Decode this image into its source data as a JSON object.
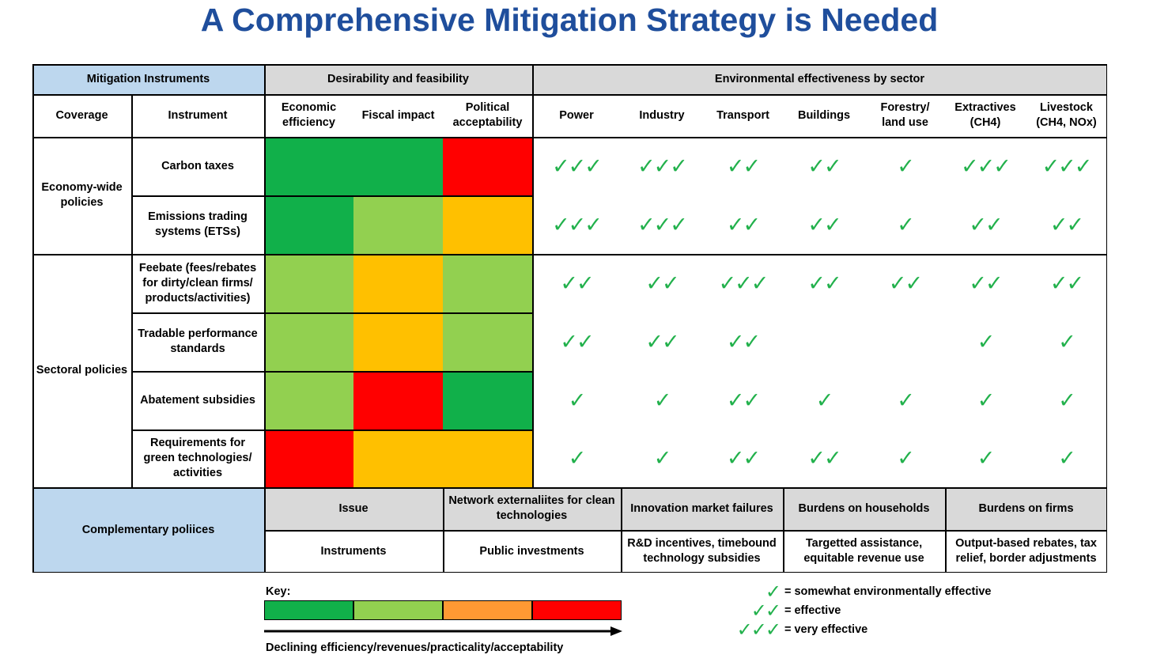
{
  "title": "A Comprehensive Mitigation Strategy is Needed",
  "colors": {
    "dark_green": "#11b04a",
    "light_green": "#92d050",
    "amber": "#ffc000",
    "orange": "#ff9933",
    "red": "#ff0000",
    "check": "#22b14c",
    "title": "#1f4e9c",
    "header_blue": "#bdd7ee",
    "header_gray": "#d9d9d9"
  },
  "header": {
    "mitigation_instruments": "Mitigation Instruments",
    "desirability": "Desirability and feasibility",
    "effectiveness": "Environmental effectiveness by sector",
    "coverage": "Coverage",
    "instrument": "Instrument",
    "economic_efficiency": "Economic efficiency",
    "fiscal_impact": "Fiscal impact",
    "political_acceptability": "Political acceptability",
    "sectors": [
      "Power",
      "Industry",
      "Transport",
      "Buildings",
      "Forestry/ land use",
      "Extractives (CH4)",
      "Livestock (CH4, NOx)"
    ]
  },
  "groups": [
    {
      "label": "Economy-wide policies"
    },
    {
      "label": "Sectoral policies"
    }
  ],
  "rows": [
    {
      "instrument": "Carbon taxes",
      "ratings": [
        "dark_green",
        "dark_green",
        "red"
      ],
      "checks": [
        "✓✓✓",
        "✓✓✓",
        "✓✓",
        "✓✓",
        "✓",
        "✓✓✓",
        "✓✓✓"
      ]
    },
    {
      "instrument": "Emissions trading systems (ETSs)",
      "ratings": [
        "dark_green",
        "light_green",
        "amber"
      ],
      "checks": [
        "✓✓✓",
        "✓✓✓",
        "✓✓",
        "✓✓",
        "✓",
        "✓✓",
        "✓✓"
      ]
    },
    {
      "instrument": "Feebate (fees/rebates for dirty/clean firms/ products/activities)",
      "ratings": [
        "light_green",
        "amber",
        "light_green"
      ],
      "checks": [
        "✓✓",
        "✓✓",
        "✓✓✓",
        "✓✓",
        "✓✓",
        "✓✓",
        "✓✓"
      ]
    },
    {
      "instrument": "Tradable performance standards",
      "ratings": [
        "light_green",
        "amber",
        "light_green"
      ],
      "checks": [
        "✓✓",
        "✓✓",
        "✓✓",
        "",
        "",
        "✓",
        "✓"
      ]
    },
    {
      "instrument": "Abatement subsidies",
      "ratings": [
        "light_green",
        "red",
        "dark_green"
      ],
      "checks": [
        "✓",
        "✓",
        "✓✓",
        "✓",
        "✓",
        "✓",
        "✓"
      ]
    },
    {
      "instrument": "Requirements for green technologies/ activities",
      "ratings": [
        "red",
        "amber",
        "amber"
      ],
      "checks": [
        "✓",
        "✓",
        "✓✓",
        "✓✓",
        "✓",
        "✓",
        "✓"
      ]
    }
  ],
  "complementary": {
    "label": "Complementary poliices",
    "issue_label": "Issue",
    "instruments_label": "Instruments",
    "issues": [
      "Network externaliites for clean technologies",
      "Innovation market failures",
      "Burdens on households",
      "Burdens on firms"
    ],
    "instruments": [
      "Public investments",
      "R&D incentives, timebound technology subsidies",
      "Targetted assistance, equitable revenue use",
      "Output-based rebates, tax relief, border adjustments"
    ]
  },
  "key": {
    "label": "Key:",
    "colors": [
      "dark_green",
      "light_green",
      "orange",
      "red"
    ],
    "arrow_caption": "Declining efficiency/revenues/practicality/acceptability",
    "legend": [
      {
        "checks": "✓",
        "text": "= somewhat environmentally effective"
      },
      {
        "checks": "✓✓",
        "text": "= effective"
      },
      {
        "checks": "✓✓✓",
        "text": "= very effective"
      }
    ]
  }
}
